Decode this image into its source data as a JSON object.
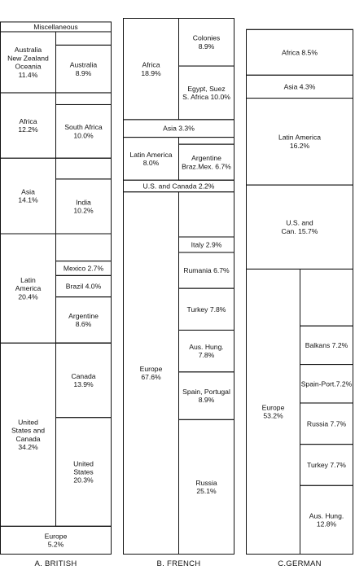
{
  "chart_data": {
    "type": "stacked-bar",
    "columns": [
      {
        "label": "A. BRITISH",
        "header": "Miscellaneous",
        "segments": [
          {
            "label": "Australia\nNew Zealand\nOceania\n11.4%",
            "value": 11.4,
            "subs": [
              {
                "label": "Australia\n8.9%",
                "value": 8.9
              }
            ]
          },
          {
            "label": "Africa\n12.2%",
            "value": 12.2,
            "subs": [
              {
                "label": "South Africa\n10.0%",
                "value": 10.0
              }
            ]
          },
          {
            "label": "Asia\n14.1%",
            "value": 14.1,
            "subs": [
              {
                "label": "India\n10.2%",
                "value": 10.2
              }
            ]
          },
          {
            "label": "Latin\nAmerica\n20.4%",
            "value": 20.4,
            "subs": [
              {
                "label": "Mexico 2.7%",
                "value": 2.7
              },
              {
                "label": "Brazil 4.0%",
                "value": 4.0
              },
              {
                "label": "Argentine\n8.6%",
                "value": 8.6
              }
            ]
          },
          {
            "label": "United\nStates and\nCanada\n34.2%",
            "value": 34.2,
            "subs": [
              {
                "label": "Canada\n13.9%",
                "value": 13.9
              },
              {
                "label": "United\nStates\n20.3%",
                "value": 20.3
              }
            ]
          },
          {
            "label": "Europe\n5.2%",
            "value": 5.2,
            "subs": []
          }
        ]
      },
      {
        "label": "B. FRENCH",
        "segments": [
          {
            "label": "Africa\n18.9%",
            "value": 18.9,
            "subs": [
              {
                "label": "Colonies\n8.9%",
                "value": 8.9
              },
              {
                "label": "Egypt, Suez\nS. Africa 10.0%",
                "value": 10.0
              }
            ]
          },
          {
            "label": "Asia 3.3%",
            "value": 3.3,
            "subs": []
          },
          {
            "label": "Latin America\n8.0%",
            "value": 8.0,
            "subs": [
              {
                "label": "Argentine\nBraz.Mex. 6.7%",
                "value": 6.7
              }
            ]
          },
          {
            "label": "U.S. and Canada 2.2%",
            "value": 2.2,
            "subs": []
          },
          {
            "label": "Europe\n67.6%",
            "value": 67.6,
            "subs": [
              {
                "label": "Italy 2.9%",
                "value": 2.9
              },
              {
                "label": "Rumania 6.7%",
                "value": 6.7
              },
              {
                "label": "Turkey 7.8%",
                "value": 7.8
              },
              {
                "label": "Aus. Hung.\n7.8%",
                "value": 7.8
              },
              {
                "label": "Spain, Portugal\n8.9%",
                "value": 8.9
              },
              {
                "label": "Russia\n25.1%",
                "value": 25.1
              }
            ]
          }
        ]
      },
      {
        "label": "C.GERMAN",
        "segments": [
          {
            "label": "Africa 8.5%",
            "value": 8.5,
            "subs": []
          },
          {
            "label": "Asia 4.3%",
            "value": 4.3,
            "subs": []
          },
          {
            "label": "Latin America\n16.2%",
            "value": 16.2,
            "subs": []
          },
          {
            "label": "U.S. and\nCan. 15.7%",
            "value": 15.7,
            "subs": []
          },
          {
            "label": "Europe\n53.2%",
            "value": 53.2,
            "subs": [
              {
                "label": "Balkans 7.2%",
                "value": 7.2
              },
              {
                "label": "Spain-Port.7.2%",
                "value": 7.2
              },
              {
                "label": "Russia 7.7%",
                "value": 7.7
              },
              {
                "label": "Turkey 7.7%",
                "value": 7.7
              },
              {
                "label": "Aus. Hung.\n12.8%",
                "value": 12.8
              }
            ]
          }
        ]
      }
    ]
  }
}
